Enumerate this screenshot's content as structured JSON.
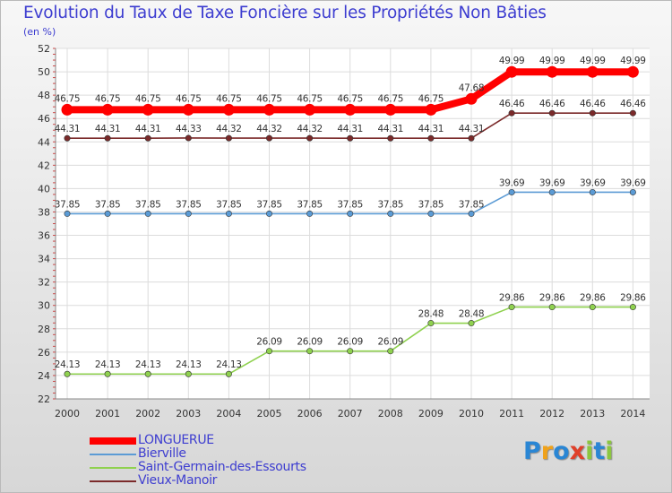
{
  "title": "Evolution du Taux de Taxe Foncière sur les Propriétés Non Bâties",
  "subtitle": "(en %)",
  "logo": {
    "letters": [
      "P",
      "r",
      "o",
      "x",
      "i",
      "t",
      "i"
    ],
    "colors": [
      "#2a86d4",
      "#f0a21a",
      "#2a86d4",
      "#e0402a",
      "#8cc63f",
      "#2a86d4",
      "#8cc63f"
    ]
  },
  "chart_data": {
    "type": "line",
    "x": [
      "2000",
      "2001",
      "2002",
      "2003",
      "2004",
      "2005",
      "2006",
      "2007",
      "2008",
      "2009",
      "2010",
      "2011",
      "2012",
      "2013",
      "2014"
    ],
    "ylim": [
      22,
      52
    ],
    "yticks": [
      22,
      24,
      26,
      28,
      30,
      32,
      34,
      36,
      38,
      40,
      42,
      44,
      46,
      48,
      50,
      52
    ],
    "grid": true,
    "legend_position": "bottom-left",
    "series": [
      {
        "name": "LONGUERUE",
        "color": "#ff0000",
        "emphasis": true,
        "values": [
          46.75,
          46.75,
          46.75,
          46.75,
          46.75,
          46.75,
          46.75,
          46.75,
          46.75,
          46.75,
          47.68,
          49.99,
          49.99,
          49.99,
          49.99
        ],
        "labels": [
          "46.75",
          "46.75",
          "46.75",
          "46.75",
          "46.75",
          "46.75",
          "46.75",
          "46.75",
          "46.75",
          "46.75",
          "47.68",
          "49.99",
          "49.99",
          "49.99",
          "49.99"
        ]
      },
      {
        "name": "Bierville",
        "color": "#5b9bd5",
        "values": [
          37.85,
          37.85,
          37.85,
          37.85,
          37.85,
          37.85,
          37.85,
          37.85,
          37.85,
          37.85,
          37.85,
          39.69,
          39.69,
          39.69,
          39.69
        ],
        "labels": [
          "37.85",
          "37.85",
          "37.85",
          "37.85",
          "37.85",
          "37.85",
          "37.85",
          "37.85",
          "37.85",
          "37.85",
          "37.85",
          "39.69",
          "39.69",
          "39.69",
          "39.69"
        ]
      },
      {
        "name": "Saint-Germain-des-Essourts",
        "color": "#8fd14f",
        "values": [
          24.13,
          24.13,
          24.13,
          24.13,
          24.13,
          26.09,
          26.09,
          26.09,
          26.09,
          28.48,
          28.48,
          29.86,
          29.86,
          29.86,
          29.86
        ],
        "labels": [
          "24.13",
          "24.13",
          "24.13",
          "24.13",
          "24.13",
          "26.09",
          "26.09",
          "26.09",
          "26.09",
          "28.48",
          "28.48",
          "29.86",
          "29.86",
          "29.86",
          "29.86"
        ]
      },
      {
        "name": "Vieux-Manoir",
        "color": "#7b2a2a",
        "values": [
          44.31,
          44.31,
          44.31,
          44.33,
          44.32,
          44.32,
          44.32,
          44.31,
          44.31,
          44.31,
          44.31,
          46.46,
          46.46,
          46.46,
          46.46
        ],
        "labels": [
          "44.31",
          "44.31",
          "44.31",
          "44.33",
          "44.32",
          "44.32",
          "44.32",
          "44.31",
          "44.31",
          "44.31",
          "44.31",
          "46.46",
          "46.46",
          "46.46",
          "46.46"
        ]
      }
    ]
  }
}
